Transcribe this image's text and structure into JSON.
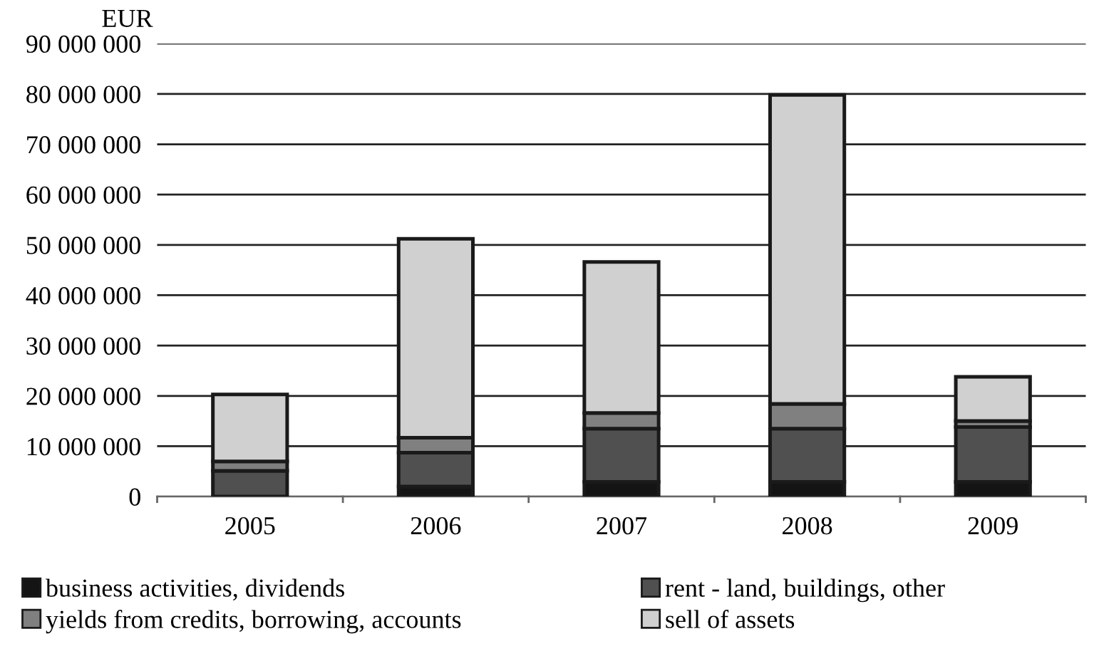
{
  "chart_data": {
    "type": "bar",
    "stacked": true,
    "ylabel": "EUR",
    "categories": [
      "2005",
      "2006",
      "2007",
      "2008",
      "2009"
    ],
    "series": [
      {
        "name": "business activities, dividends",
        "color": "#141414",
        "values": [
          null,
          2000000,
          2900000,
          2900000,
          2900000
        ]
      },
      {
        "name": "rent - land, buildings, other",
        "color": "#505050",
        "values": [
          5100000,
          6700000,
          10600000,
          10600000,
          10900000
        ]
      },
      {
        "name": "yields from credits, borrowing, accounts",
        "color": "#808080",
        "values": [
          1900000,
          3000000,
          3100000,
          4900000,
          1200000
        ]
      },
      {
        "name": "sell of assets",
        "color": "#cfd0cf",
        "values": [
          13300000,
          39500000,
          30000000,
          61400000,
          8800000
        ]
      }
    ],
    "ylim": [
      0,
      90000000
    ],
    "yticks": [
      0,
      {
        "value": 10000000,
        "label": "10 000 000"
      },
      {
        "value": 20000000,
        "label": "20 000 000"
      },
      {
        "value": 30000000,
        "label": "30 000 000"
      },
      {
        "value": 40000000,
        "label": "40 000 000"
      },
      {
        "value": 50000000,
        "label": "50 000 000"
      },
      {
        "value": 60000000,
        "label": "60 000 000"
      },
      {
        "value": 70000000,
        "label": "70 000 000"
      },
      {
        "value": 80000000,
        "label": "80 000 000"
      },
      {
        "value": 90000000,
        "label": "90 000 000"
      }
    ],
    "grid": "y",
    "legend": "bottom"
  }
}
